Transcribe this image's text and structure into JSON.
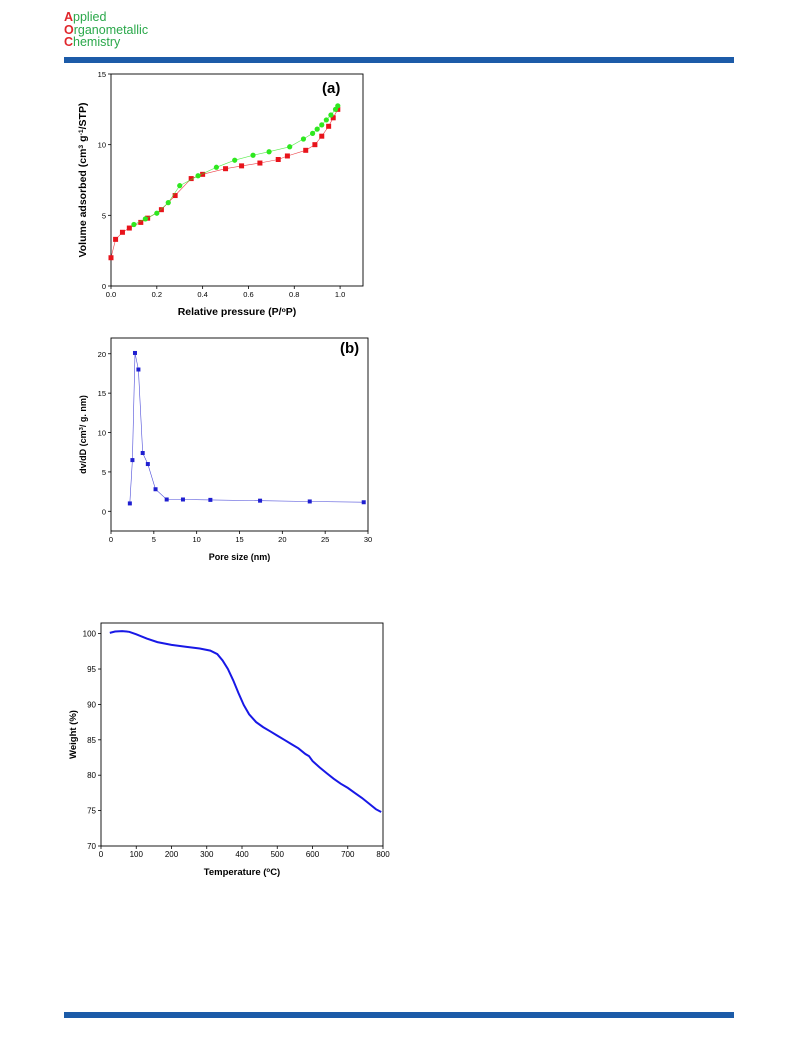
{
  "header": {
    "journal": [
      {
        "cap": "A",
        "rest": "pplied"
      },
      {
        "cap": "O",
        "rest": "rganometallic"
      },
      {
        "cap": "C",
        "rest": "hemistry"
      }
    ]
  },
  "colors": {
    "brand_bar": "#1c5ba8",
    "logo_red": "#e0262b",
    "logo_green": "#2aa84a"
  },
  "chart_data": [
    {
      "id": "a",
      "type": "scatter",
      "panel_label": "(a)",
      "xlabel": "Relative pressure (P/",
      "xlabel_sup": "o",
      "xlabel_end": "P)",
      "ylabel_parts": [
        "Volume adsorbed (cm",
        "3",
        " g",
        "-1",
        "/STP)"
      ],
      "xlim": [
        0,
        1.1
      ],
      "ylim": [
        0,
        15
      ],
      "xticks": [
        0,
        0.2,
        0.4,
        0.6,
        0.8,
        1.0
      ],
      "xtick_labels": [
        "0.0",
        "0.2",
        "0.4",
        "0.6",
        "0.8",
        "1.0"
      ],
      "yticks": [
        0,
        5,
        10,
        15
      ],
      "ytick_labels": [
        "0",
        "5",
        "10",
        "15"
      ],
      "series": [
        {
          "color": "#e8131b",
          "marker": "square",
          "x": [
            0.0,
            0.02,
            0.05,
            0.08,
            0.13,
            0.16,
            0.22,
            0.28,
            0.35,
            0.4,
            0.5,
            0.57,
            0.65,
            0.73,
            0.77,
            0.85,
            0.89,
            0.92,
            0.95,
            0.97,
            0.99
          ],
          "y": [
            2.0,
            3.3,
            3.8,
            4.1,
            4.5,
            4.8,
            5.4,
            6.4,
            7.6,
            7.9,
            8.3,
            8.5,
            8.7,
            8.95,
            9.2,
            9.6,
            10.0,
            10.6,
            11.3,
            11.9,
            12.5
          ]
        },
        {
          "color": "#2ee81f",
          "marker": "circle",
          "x": [
            0.1,
            0.15,
            0.2,
            0.25,
            0.3,
            0.38,
            0.46,
            0.54,
            0.62,
            0.69,
            0.78,
            0.84,
            0.88,
            0.9,
            0.92,
            0.94,
            0.96,
            0.98,
            0.99
          ],
          "y": [
            4.35,
            4.75,
            5.15,
            5.9,
            7.1,
            7.8,
            8.4,
            8.9,
            9.25,
            9.5,
            9.85,
            10.4,
            10.8,
            11.1,
            11.4,
            11.75,
            12.1,
            12.5,
            12.75
          ]
        }
      ]
    },
    {
      "id": "b",
      "type": "line",
      "panel_label": "(b)",
      "xlabel": "Pore size (nm)",
      "ylabel_parts": [
        "dv/dD (cm",
        "3",
        "/ g. nm)"
      ],
      "xlim": [
        0,
        30
      ],
      "ylim": [
        -2.5,
        22
      ],
      "xticks": [
        0,
        5,
        10,
        15,
        20,
        25,
        30
      ],
      "xtick_labels": [
        "0",
        "5",
        "10",
        "15",
        "20",
        "25",
        "30"
      ],
      "yticks": [
        0,
        5,
        10,
        15,
        20
      ],
      "ytick_labels": [
        "0",
        "5",
        "10",
        "15",
        "20"
      ],
      "series": [
        {
          "color": "#1f1fd0",
          "marker": "square",
          "x": [
            2.2,
            2.5,
            2.8,
            3.2,
            3.7,
            4.3,
            5.2,
            6.5,
            8.4,
            11.6,
            17.4,
            23.2,
            29.5
          ],
          "y": [
            1.0,
            6.5,
            20.1,
            18.0,
            7.4,
            6.0,
            2.8,
            1.5,
            1.5,
            1.45,
            1.35,
            1.25,
            1.15
          ]
        }
      ]
    },
    {
      "id": "tga",
      "type": "line",
      "xlabel": "Temperature (",
      "xlabel_sup": "o",
      "xlabel_end": "C)",
      "ylabel_parts": [
        "Weight (%)"
      ],
      "xlim": [
        0,
        800
      ],
      "ylim": [
        70,
        101.5
      ],
      "xticks": [
        0,
        100,
        200,
        300,
        400,
        500,
        600,
        700,
        800
      ],
      "xtick_labels": [
        "0",
        "100",
        "200",
        "300",
        "400",
        "500",
        "600",
        "700",
        "800"
      ],
      "yticks": [
        70,
        75,
        80,
        85,
        90,
        95,
        100
      ],
      "ytick_labels": [
        "70",
        "75",
        "80",
        "85",
        "90",
        "95",
        "100"
      ],
      "series": [
        {
          "color": "#1818e6",
          "marker": "none",
          "x": [
            25,
            40,
            60,
            80,
            100,
            130,
            160,
            200,
            240,
            280,
            310,
            330,
            345,
            360,
            375,
            390,
            405,
            420,
            440,
            460,
            480,
            500,
            520,
            540,
            560,
            580,
            590,
            600,
            620,
            640,
            660,
            680,
            700,
            720,
            740,
            760,
            780,
            795
          ],
          "y": [
            100.1,
            100.3,
            100.35,
            100.25,
            99.9,
            99.3,
            98.8,
            98.4,
            98.15,
            97.9,
            97.6,
            97.1,
            96.2,
            95.0,
            93.4,
            91.6,
            89.9,
            88.6,
            87.5,
            86.8,
            86.2,
            85.6,
            85.0,
            84.4,
            83.8,
            83.0,
            82.7,
            82.0,
            81.1,
            80.3,
            79.5,
            78.8,
            78.2,
            77.5,
            76.8,
            76.0,
            75.2,
            74.8
          ]
        }
      ]
    }
  ]
}
